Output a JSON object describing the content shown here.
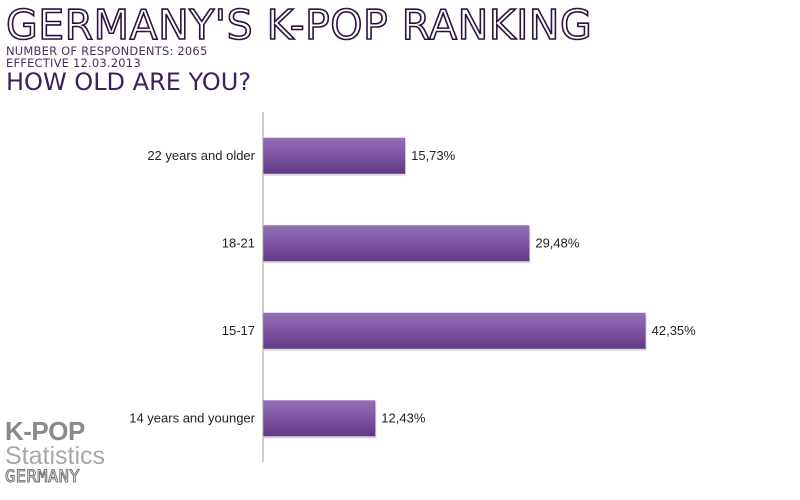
{
  "header": {
    "title": "GERMANY'S K-POP RANKING",
    "respondents": "NUMBER OF RESPONDENTS: 2065",
    "effective": "EFFECTIVE  12.03.2013",
    "question": "HOW OLD ARE YOU?"
  },
  "logo": {
    "line1": "K-POP",
    "line2": "Statistics",
    "line3": "GERMANY"
  },
  "colors": {
    "bar": "#7b519f",
    "bar_light": "#9470b5",
    "bar_dark": "#5f3a82",
    "axis": "#999999",
    "title_stroke": "#2b1240"
  },
  "chart_data": {
    "type": "bar",
    "orientation": "horizontal",
    "categories": [
      "22 years and older",
      "18-21",
      "15-17",
      "14 years and younger"
    ],
    "values": [
      15.73,
      29.48,
      42.35,
      12.43
    ],
    "value_labels": [
      "15,73%",
      "29,48%",
      "42,35%",
      "12,43%"
    ],
    "xlim": [
      0,
      57
    ],
    "grid": false,
    "legend": "none"
  }
}
